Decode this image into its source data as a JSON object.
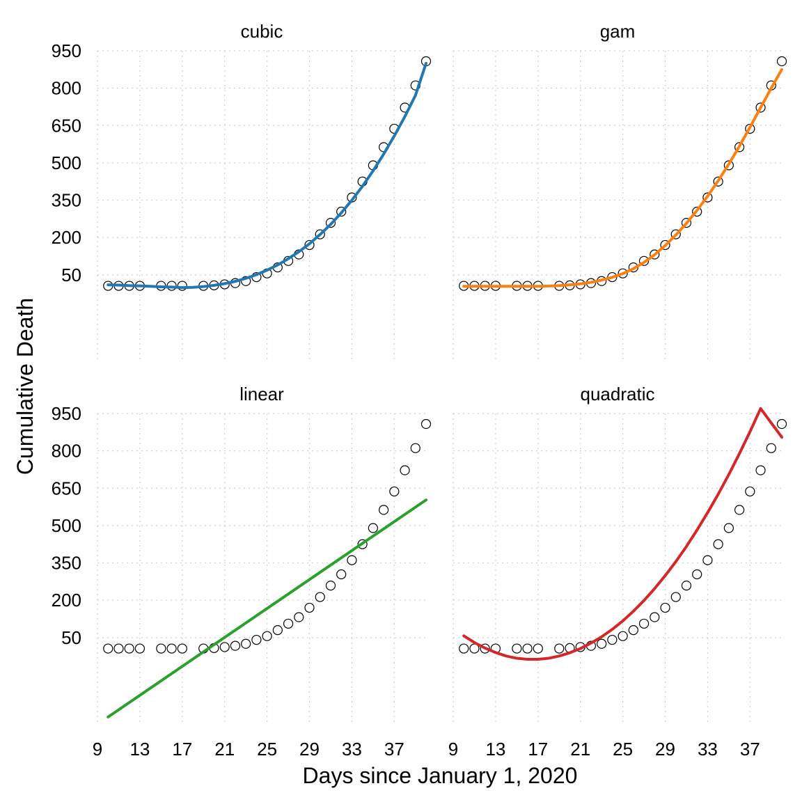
{
  "chart_data": {
    "type": "scatter",
    "layout": "facet-grid-2x2",
    "xlabel": "Days since January 1, 2020",
    "ylabel": "Cumulative Death",
    "xlim": [
      9,
      40
    ],
    "ylim": [
      -300,
      950
    ],
    "x_ticks": [
      9,
      13,
      17,
      21,
      25,
      29,
      33,
      37
    ],
    "y_ticks": [
      50,
      200,
      350,
      500,
      650,
      800,
      950
    ],
    "grid": true,
    "observed": {
      "x": [
        10,
        11,
        12,
        13,
        15,
        16,
        17,
        19,
        20,
        21,
        22,
        23,
        24,
        25,
        26,
        27,
        28,
        29,
        30,
        31,
        32,
        33,
        34,
        35,
        36,
        37,
        38,
        39,
        40
      ],
      "y": [
        6,
        6,
        6,
        6,
        6,
        6,
        6,
        6,
        8,
        12,
        17,
        25,
        41,
        56,
        80,
        106,
        132,
        170,
        213,
        259,
        304,
        361,
        425,
        490,
        563,
        637,
        722,
        811,
        908
      ]
    },
    "panels": [
      {
        "title": "cubic",
        "color": "#1f77b4",
        "fit_x": [
          10,
          11,
          12,
          13,
          14,
          15,
          16,
          17,
          18,
          19,
          20,
          21,
          22,
          23,
          24,
          25,
          26,
          27,
          28,
          29,
          30,
          31,
          32,
          33,
          34,
          35,
          36,
          37,
          38,
          39,
          40
        ],
        "fit_y": [
          10,
          9,
          7,
          6,
          4,
          2,
          1,
          -1,
          0,
          3,
          8,
          15,
          24,
          36,
          51,
          69,
          90,
          115,
          143,
          175,
          212,
          253,
          299,
          350,
          406,
          468,
          535,
          608,
          686,
          771,
          900
        ]
      },
      {
        "title": "gam",
        "color": "#ff7f0e",
        "fit_x": [
          10,
          11,
          12,
          13,
          14,
          15,
          16,
          17,
          18,
          19,
          20,
          21,
          22,
          23,
          24,
          25,
          26,
          27,
          28,
          29,
          30,
          31,
          32,
          33,
          34,
          35,
          36,
          37,
          38,
          39,
          40
        ],
        "fit_y": [
          4,
          4,
          4,
          4,
          4,
          4,
          4,
          4,
          5,
          7,
          10,
          14,
          20,
          29,
          40,
          55,
          75,
          100,
          131,
          168,
          210,
          257,
          309,
          366,
          428,
          495,
          567,
          643,
          722,
          800,
          875
        ]
      },
      {
        "title": "linear",
        "color": "#2ca02c",
        "fit_x": [
          10,
          40
        ],
        "fit_y": [
          -269,
          603
        ]
      },
      {
        "title": "quadratic",
        "color": "#d62728",
        "fit_x": [
          10,
          11,
          12,
          13,
          14,
          15,
          16,
          17,
          18,
          19,
          20,
          21,
          22,
          23,
          24,
          25,
          26,
          27,
          28,
          29,
          30,
          31,
          32,
          33,
          34,
          35,
          36,
          37,
          38,
          39,
          40
        ],
        "fit_y": [
          57,
          30,
          8,
          -10,
          -24,
          -33,
          -37,
          -37,
          -33,
          -24,
          -11,
          6,
          28,
          53,
          83,
          117,
          156,
          199,
          247,
          299,
          355,
          416,
          482,
          552,
          626,
          705,
          789,
          877,
          970,
          1067,
          855
        ]
      }
    ]
  }
}
